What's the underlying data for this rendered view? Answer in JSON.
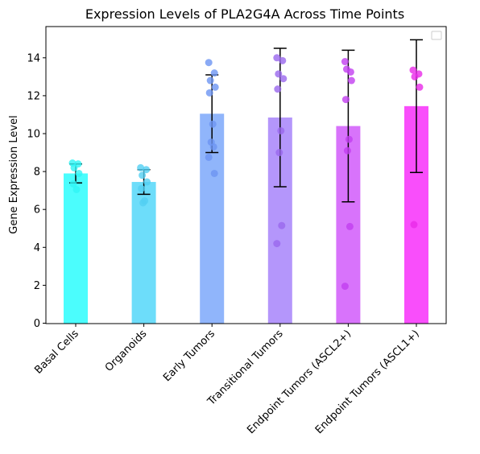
{
  "chart_data": {
    "type": "bar",
    "title": "Expression Levels of PLA2G4A Across Time Points",
    "xlabel": "",
    "ylabel": "Gene Expression Level",
    "ylim": [
      0,
      15.6
    ],
    "yticks": [
      0,
      2,
      4,
      6,
      8,
      10,
      12,
      14
    ],
    "legend": "top-right (empty)",
    "grid": false,
    "categories": [
      "Basal Cells",
      "Organoids",
      "Early Tumors",
      "Transitional Tumors",
      "Endpoint Tumors (ASCL2+)",
      "Endpoint Tumors (ASCL1+)"
    ],
    "values": [
      7.9,
      7.45,
      11.05,
      10.85,
      10.4,
      11.45
    ],
    "error": [
      0.5,
      0.65,
      2.05,
      3.65,
      4.0,
      3.5
    ],
    "points": [
      [
        8.45,
        8.4,
        8.2,
        7.9,
        7.35,
        7.05
      ],
      [
        8.2,
        8.1,
        7.8,
        7.45,
        7.1,
        6.45,
        6.35
      ],
      [
        13.75,
        13.2,
        12.8,
        12.45,
        12.15,
        10.5,
        9.55,
        9.3,
        8.75,
        7.9
      ],
      [
        14.0,
        13.85,
        13.15,
        12.9,
        12.35,
        10.15,
        9.0,
        5.15,
        4.2
      ],
      [
        13.8,
        13.25,
        13.4,
        12.8,
        11.8,
        9.7,
        9.1,
        5.1,
        1.95
      ],
      [
        13.35,
        13.15,
        13.0,
        12.45,
        5.2
      ]
    ],
    "colors": [
      "#4bfdfd",
      "#6dddfa",
      "#90b5fb",
      "#b496fb",
      "#d873fb",
      "#f94efb"
    ],
    "point_colors": [
      "#2ff5f5",
      "#53cff3",
      "#6d95f3",
      "#9a68ed",
      "#c23ff0",
      "#e82ae8"
    ]
  }
}
